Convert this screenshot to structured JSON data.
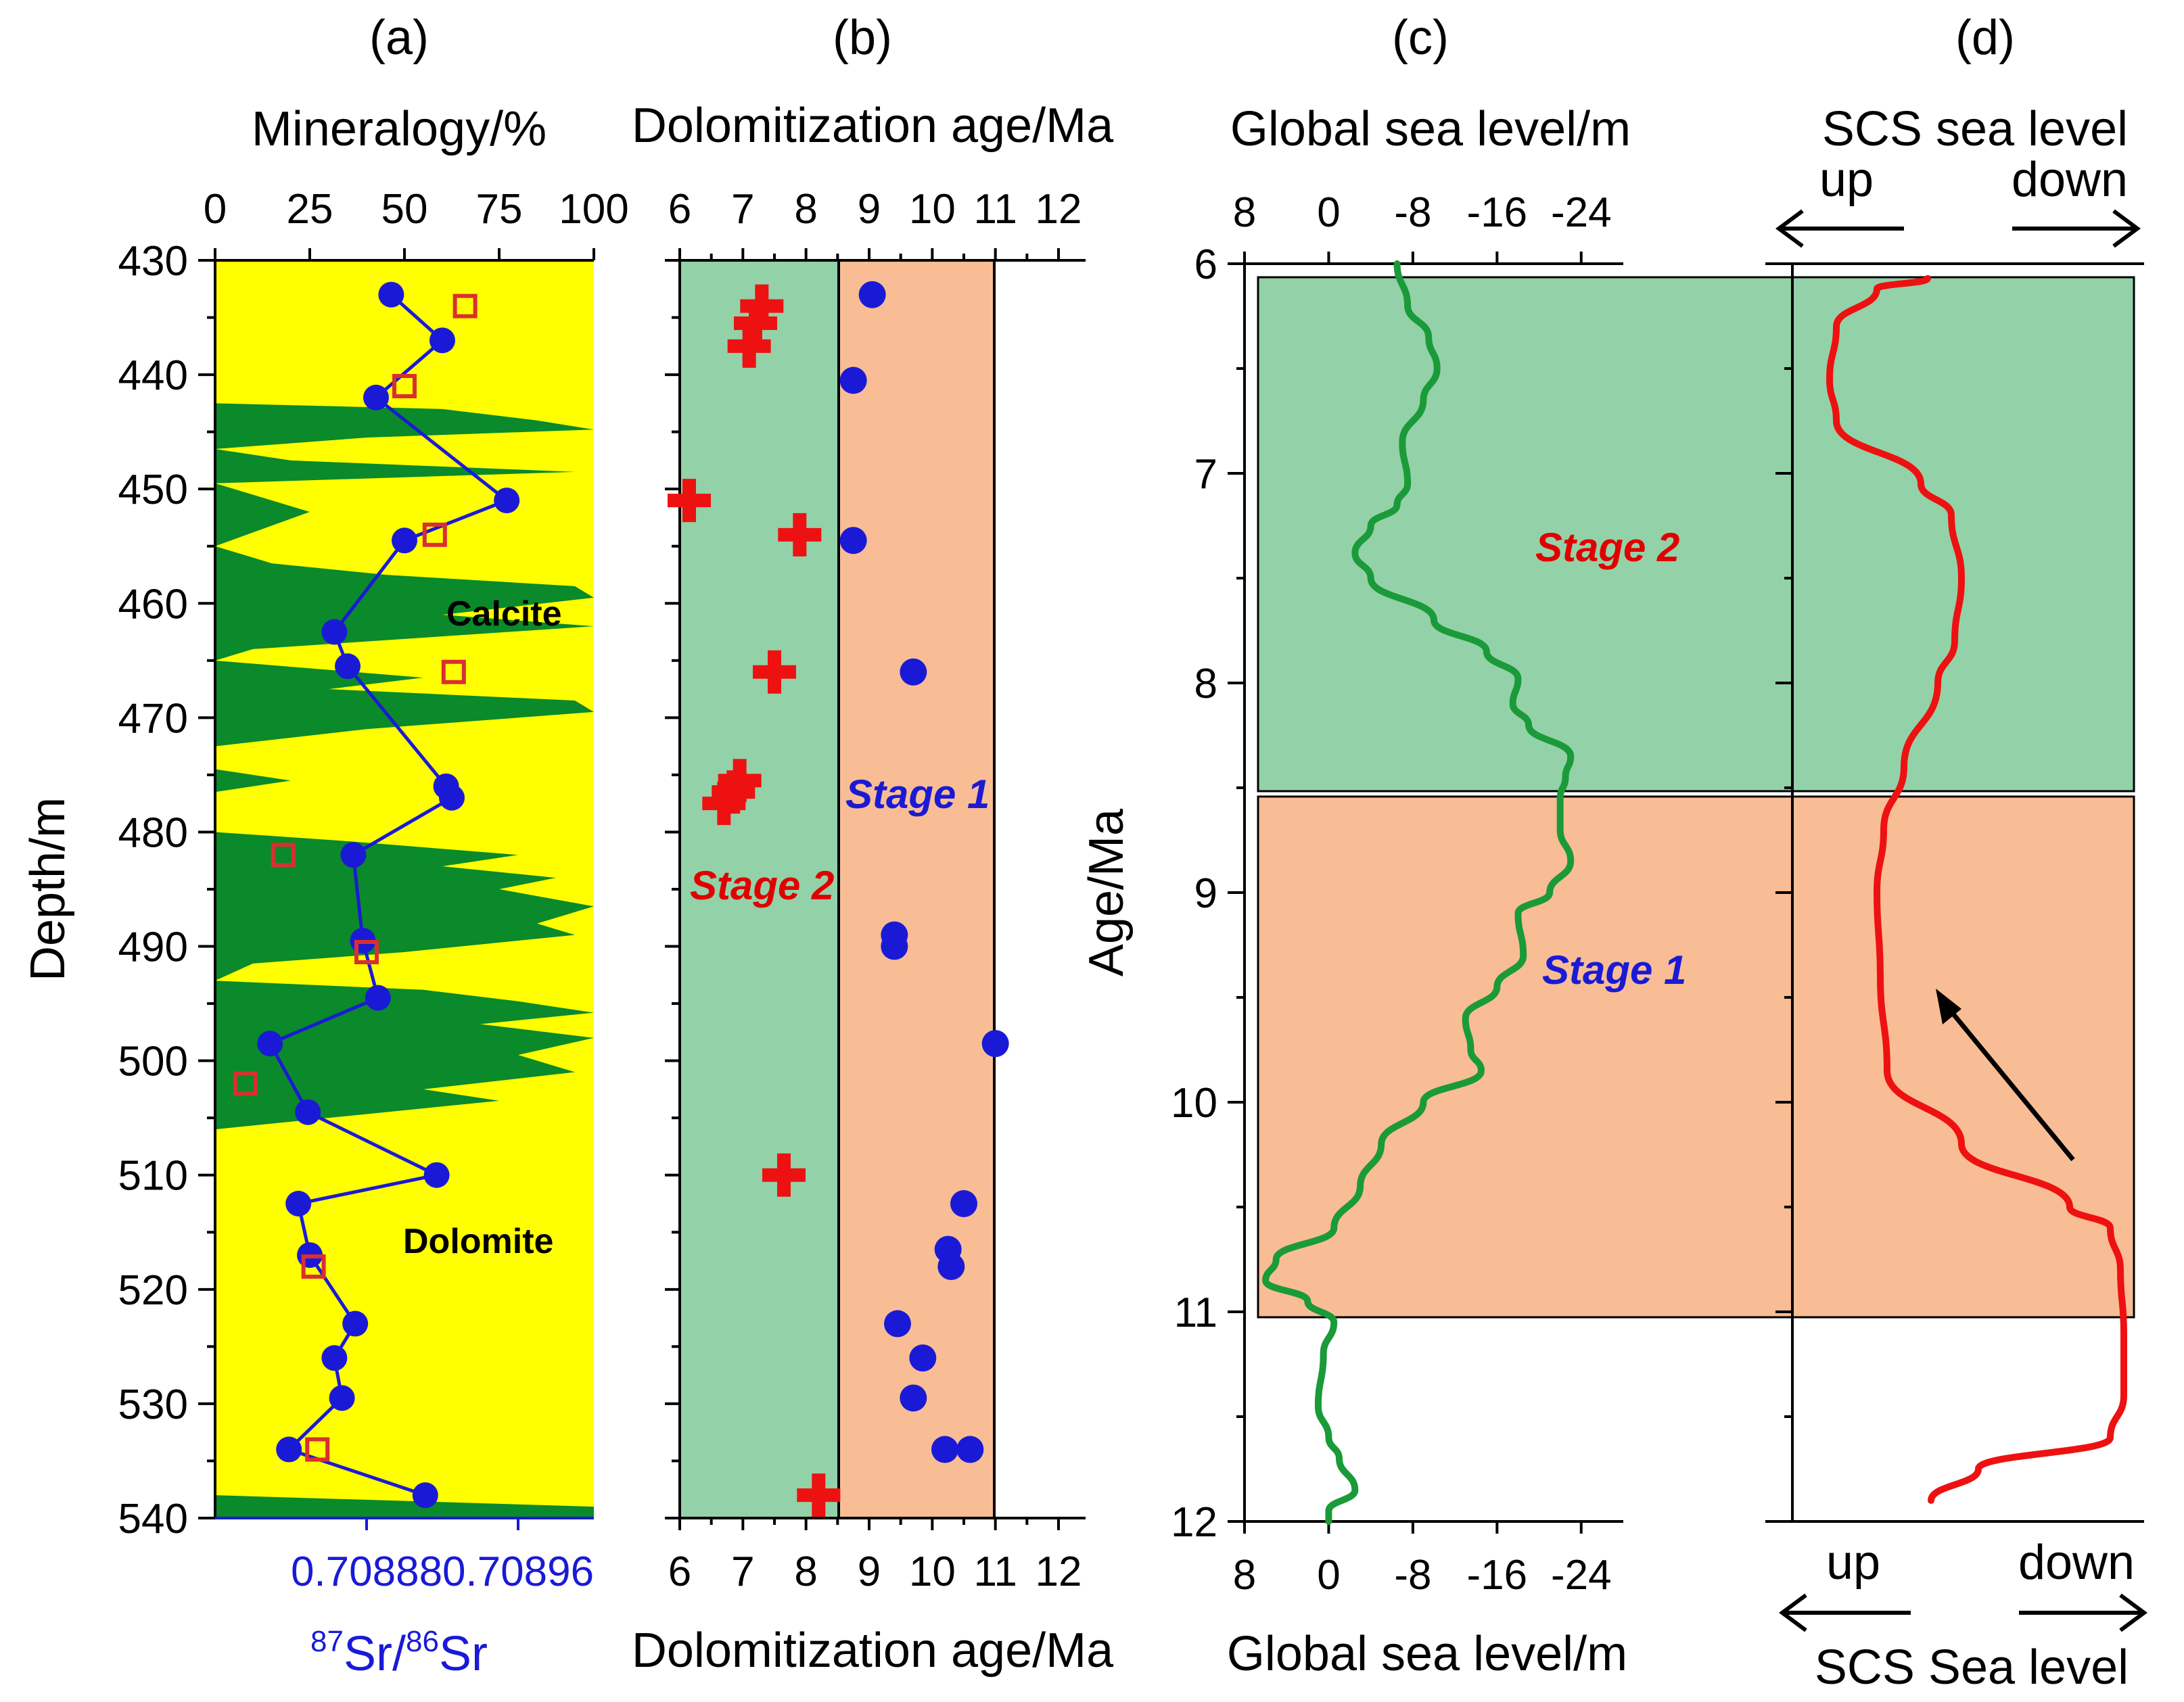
{
  "chart_data": [
    {
      "panel": "(a)",
      "type": "area+line",
      "title": "Mineralogy/%",
      "top_axis": {
        "label": "Mineralogy/%",
        "ticks": [
          "0",
          "25",
          "50",
          "75",
          "100"
        ],
        "range": [
          0,
          100
        ]
      },
      "bottom_axis": {
        "label_sup1": "87",
        "label_mid": "Sr/",
        "label_sup2": "86",
        "label_end": "Sr",
        "ticks": [
          "0.70888",
          "0.70896"
        ],
        "range": [
          0.7088,
          0.709
        ]
      },
      "y_axis": {
        "label": "Depth/m",
        "ticks": [
          "430",
          "440",
          "450",
          "460",
          "470",
          "480",
          "490",
          "500",
          "510",
          "520",
          "530",
          "540"
        ],
        "range": [
          430,
          540
        ]
      },
      "area_labels": {
        "calcite": "Calcite",
        "dolomite": "Dolomite"
      },
      "colors": {
        "dolomite": "#ffff00",
        "calcite": "#0a8a2a",
        "line": "#1a1ad6",
        "square": "#d83030"
      },
      "calcite_profile": [
        [
          430,
          0
        ],
        [
          440,
          0
        ],
        [
          442.5,
          0
        ],
        [
          443,
          60
        ],
        [
          444,
          85
        ],
        [
          444.8,
          100
        ],
        [
          445.5,
          40
        ],
        [
          446.5,
          0
        ],
        [
          447.5,
          20
        ],
        [
          448.5,
          95
        ],
        [
          449.5,
          0
        ],
        [
          452,
          25
        ],
        [
          455,
          0
        ],
        [
          456.5,
          15
        ],
        [
          457.5,
          45
        ],
        [
          458.5,
          95
        ],
        [
          459.5,
          100
        ],
        [
          461,
          60
        ],
        [
          462,
          100
        ],
        [
          464,
          10
        ],
        [
          465,
          0
        ],
        [
          466.5,
          55
        ],
        [
          467.5,
          30
        ],
        [
          468.5,
          95
        ],
        [
          469.5,
          100
        ],
        [
          471,
          40
        ],
        [
          472.5,
          0
        ],
        [
          474.5,
          0
        ],
        [
          475.5,
          20
        ],
        [
          476.5,
          0
        ],
        [
          480,
          0
        ],
        [
          480.8,
          35
        ],
        [
          482,
          80
        ],
        [
          483,
          60
        ],
        [
          484,
          90
        ],
        [
          485,
          75
        ],
        [
          486.5,
          100
        ],
        [
          488,
          85
        ],
        [
          489,
          95
        ],
        [
          490.5,
          50
        ],
        [
          491.5,
          10
        ],
        [
          493,
          0
        ],
        [
          493.8,
          55
        ],
        [
          494.8,
          80
        ],
        [
          495.8,
          100
        ],
        [
          496.8,
          70
        ],
        [
          498,
          100
        ],
        [
          499.5,
          80
        ],
        [
          501,
          95
        ],
        [
          502.5,
          55
        ],
        [
          503.5,
          75
        ],
        [
          505,
          30
        ],
        [
          506,
          0
        ],
        [
          538,
          0
        ],
        [
          539,
          100
        ],
        [
          540,
          100
        ]
      ],
      "sr_series": [
        {
          "depth": 433,
          "sr": 0.708893
        },
        {
          "depth": 437,
          "sr": 0.70892
        },
        {
          "depth": 442,
          "sr": 0.708885
        },
        {
          "depth": 451,
          "sr": 0.708954
        },
        {
          "depth": 454.5,
          "sr": 0.7089
        },
        {
          "depth": 462.5,
          "sr": 0.708863
        },
        {
          "depth": 465.5,
          "sr": 0.70887
        },
        {
          "depth": 476,
          "sr": 0.708922
        },
        {
          "depth": 477,
          "sr": 0.708925
        },
        {
          "depth": 482,
          "sr": 0.708873
        },
        {
          "depth": 489.5,
          "sr": 0.708878
        },
        {
          "depth": 494.5,
          "sr": 0.708886
        },
        {
          "depth": 498.5,
          "sr": 0.708829
        },
        {
          "depth": 504.5,
          "sr": 0.708849
        },
        {
          "depth": 510,
          "sr": 0.708917
        },
        {
          "depth": 512.5,
          "sr": 0.708844
        },
        {
          "depth": 517,
          "sr": 0.70885
        },
        {
          "depth": 523,
          "sr": 0.708874
        },
        {
          "depth": 526,
          "sr": 0.708863
        },
        {
          "depth": 529.5,
          "sr": 0.708867
        },
        {
          "depth": 534,
          "sr": 0.708839
        },
        {
          "depth": 538,
          "sr": 0.708911
        }
      ],
      "mineralogy_squares": [
        {
          "depth": 434,
          "pct": 66
        },
        {
          "depth": 441,
          "pct": 50
        },
        {
          "depth": 454,
          "pct": 58
        },
        {
          "depth": 466,
          "pct": 63
        },
        {
          "depth": 482,
          "pct": 18
        },
        {
          "depth": 490.5,
          "pct": 40
        },
        {
          "depth": 502,
          "pct": 8
        },
        {
          "depth": 518,
          "pct": 26
        },
        {
          "depth": 534,
          "pct": 27
        }
      ]
    },
    {
      "panel": "(b)",
      "type": "scatter",
      "top_label": "Dolomitization age/Ma",
      "bottom_label": "Dolomitization age/Ma",
      "x_ticks": [
        "6",
        "7",
        "8",
        "9",
        "10",
        "11",
        "12"
      ],
      "x_range": [
        6,
        12
      ],
      "y_range": [
        430,
        540
      ],
      "bands": [
        {
          "name": "Stage 2",
          "from": 6,
          "to": 8.5,
          "color": "#93d2a8"
        },
        {
          "name": "Stage 1",
          "from": 8.5,
          "to": 11,
          "color": "#f8bd94"
        }
      ],
      "stage_labels": {
        "stage2": "Stage 2",
        "stage1": "Stage 1"
      },
      "crosses": [
        {
          "depth": 434,
          "age": 7.3
        },
        {
          "depth": 435.5,
          "age": 7.2
        },
        {
          "depth": 437.5,
          "age": 7.1
        },
        {
          "depth": 451,
          "age": 6.15
        },
        {
          "depth": 454,
          "age": 7.9
        },
        {
          "depth": 466,
          "age": 7.5
        },
        {
          "depth": 475.5,
          "age": 6.95
        },
        {
          "depth": 476.5,
          "age": 6.85
        },
        {
          "depth": 477.5,
          "age": 6.7
        },
        {
          "depth": 510,
          "age": 7.65
        },
        {
          "depth": 538,
          "age": 8.2
        }
      ],
      "dots": [
        {
          "depth": 433,
          "age": 9.05
        },
        {
          "depth": 440.5,
          "age": 8.75
        },
        {
          "depth": 454.5,
          "age": 8.75
        },
        {
          "depth": 466,
          "age": 9.7
        },
        {
          "depth": 489,
          "age": 9.4
        },
        {
          "depth": 490,
          "age": 9.4
        },
        {
          "depth": 498.5,
          "age": 11.0
        },
        {
          "depth": 512.5,
          "age": 10.5
        },
        {
          "depth": 516.5,
          "age": 10.25
        },
        {
          "depth": 518,
          "age": 10.3
        },
        {
          "depth": 523,
          "age": 9.45
        },
        {
          "depth": 526,
          "age": 9.85
        },
        {
          "depth": 529.5,
          "age": 9.7
        },
        {
          "depth": 534,
          "age": 10.2
        },
        {
          "depth": 534,
          "age": 10.6
        }
      ]
    },
    {
      "panel": "(c)",
      "type": "line",
      "top_label": "Global sea level/m",
      "bottom_label": "Global sea level/m",
      "x_ticks": [
        "8",
        "0",
        "-8",
        "-16",
        "-24"
      ],
      "x_range": [
        8,
        -28
      ],
      "y_axis": {
        "label": "Age/Ma",
        "ticks": [
          "6",
          "7",
          "8",
          "9",
          "10",
          "11",
          "12"
        ],
        "range": [
          6,
          12
        ]
      },
      "stage_labels": {
        "stage2": "Stage 2",
        "stage1": "Stage 1"
      },
      "curve": [
        [
          6.0,
          -6.5
        ],
        [
          6.2,
          -7.5
        ],
        [
          6.35,
          -9.5
        ],
        [
          6.5,
          -10.3
        ],
        [
          6.65,
          -9.0
        ],
        [
          6.85,
          -7.0
        ],
        [
          7.05,
          -7.5
        ],
        [
          7.15,
          -6.5
        ],
        [
          7.25,
          -4.0
        ],
        [
          7.38,
          -2.5
        ],
        [
          7.5,
          -4.0
        ],
        [
          7.7,
          -10.0
        ],
        [
          7.85,
          -15.0
        ],
        [
          7.98,
          -18.0
        ],
        [
          8.1,
          -17.5
        ],
        [
          8.2,
          -19.0
        ],
        [
          8.35,
          -23.0
        ],
        [
          8.45,
          -22.5
        ],
        [
          8.55,
          -22.0
        ],
        [
          8.7,
          -22.0
        ],
        [
          8.85,
          -23.0
        ],
        [
          9.0,
          -21.0
        ],
        [
          9.1,
          -18.0
        ],
        [
          9.3,
          -18.5
        ],
        [
          9.45,
          -16.0
        ],
        [
          9.6,
          -13.0
        ],
        [
          9.75,
          -13.5
        ],
        [
          9.85,
          -14.5
        ],
        [
          10.0,
          -9.0
        ],
        [
          10.2,
          -5.0
        ],
        [
          10.4,
          -3.0
        ],
        [
          10.6,
          -0.5
        ],
        [
          10.75,
          5.0
        ],
        [
          10.85,
          6.0
        ],
        [
          10.95,
          2.0
        ],
        [
          11.05,
          -0.5
        ],
        [
          11.2,
          0.5
        ],
        [
          11.45,
          1.0
        ],
        [
          11.6,
          0.0
        ],
        [
          11.7,
          -1.0
        ],
        [
          11.85,
          -2.5
        ],
        [
          11.95,
          0.0
        ],
        [
          12.0,
          0.0
        ]
      ]
    },
    {
      "panel": "(d)",
      "type": "line",
      "top_label": "SCS sea level",
      "bottom_label": "SCS Sea level",
      "direction_labels": {
        "top_up": "up",
        "top_down": "down",
        "bottom_up": "up",
        "bottom_down": "down"
      },
      "x_range_note": "relative (up to down)",
      "curve": [
        [
          6.07,
          0.4
        ],
        [
          6.12,
          0.25
        ],
        [
          6.3,
          0.13
        ],
        [
          6.55,
          0.11
        ],
        [
          6.75,
          0.13
        ],
        [
          7.05,
          0.38
        ],
        [
          7.2,
          0.47
        ],
        [
          7.5,
          0.5
        ],
        [
          7.8,
          0.48
        ],
        [
          8.0,
          0.43
        ],
        [
          8.4,
          0.33
        ],
        [
          8.7,
          0.27
        ],
        [
          9.0,
          0.25
        ],
        [
          9.4,
          0.26
        ],
        [
          9.85,
          0.28
        ],
        [
          10.2,
          0.5
        ],
        [
          10.5,
          0.82
        ],
        [
          10.6,
          0.94
        ],
        [
          10.8,
          0.97
        ],
        [
          11.1,
          0.98
        ],
        [
          11.4,
          0.98
        ],
        [
          11.6,
          0.94
        ],
        [
          11.75,
          0.55
        ],
        [
          11.9,
          0.41
        ]
      ]
    }
  ],
  "labels": {
    "panel_a": "(a)",
    "panel_b": "(b)",
    "panel_c": "(c)",
    "panel_d": "(d)"
  }
}
